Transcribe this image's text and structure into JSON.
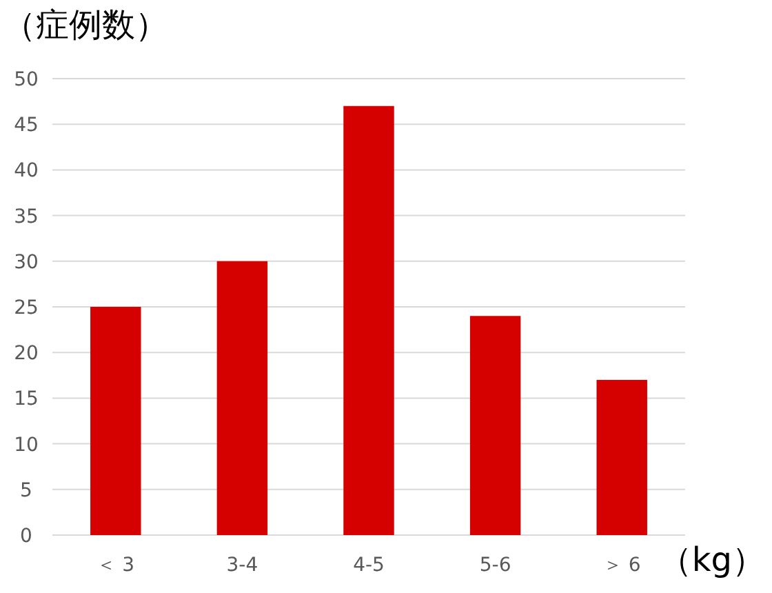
{
  "chart_data": {
    "type": "bar",
    "ylabel": "（症例数）",
    "xlabel": "（kg）",
    "categories": [
      "＜ 3",
      "3-4",
      "4-5",
      "5-6",
      "＞ 6"
    ],
    "values": [
      25,
      30,
      47,
      24,
      17
    ],
    "color": "#d50000",
    "ylim": [
      0,
      50
    ],
    "yticks": [
      0,
      5,
      10,
      15,
      20,
      25,
      30,
      35,
      40,
      45,
      50
    ],
    "grid": "y"
  }
}
